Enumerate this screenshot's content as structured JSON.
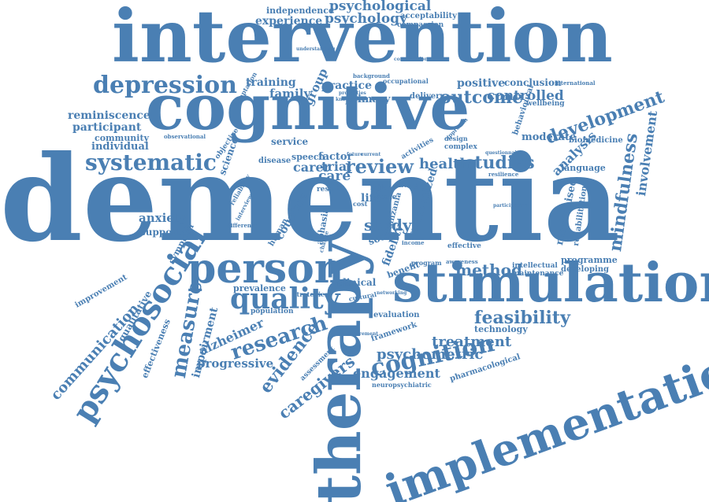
{
  "palette": {
    "word_color": "#4a7fb3",
    "background": "#ffffff"
  },
  "words": [
    {
      "text": "dementia"
    },
    {
      "text": "intervention"
    },
    {
      "text": "cognitive"
    },
    {
      "text": "stimulation"
    },
    {
      "text": "therapy"
    },
    {
      "text": "implementation"
    },
    {
      "text": "person"
    },
    {
      "text": "psychosocial"
    },
    {
      "text": "quality"
    },
    {
      "text": "depression"
    },
    {
      "text": "systematic"
    },
    {
      "text": "cognition"
    },
    {
      "text": "research"
    },
    {
      "text": "review"
    },
    {
      "text": "mindfulness"
    },
    {
      "text": "development"
    },
    {
      "text": "measure"
    },
    {
      "text": "evidence"
    },
    {
      "text": "studies"
    },
    {
      "text": "outcome"
    },
    {
      "text": "health"
    },
    {
      "text": "feasibility"
    },
    {
      "text": "caregivers"
    },
    {
      "text": "psychometric"
    },
    {
      "text": "treatment"
    },
    {
      "text": "communication"
    },
    {
      "text": "method"
    },
    {
      "text": "study"
    },
    {
      "text": "psychology"
    },
    {
      "text": "psychological"
    },
    {
      "text": "experience"
    },
    {
      "text": "independence"
    },
    {
      "text": "acceptability"
    },
    {
      "text": "compassion"
    },
    {
      "text": "training"
    },
    {
      "text": "family"
    },
    {
      "text": "group"
    },
    {
      "text": "practice"
    },
    {
      "text": "primary"
    },
    {
      "text": "positive"
    },
    {
      "text": "conclusion"
    },
    {
      "text": "controlled"
    },
    {
      "text": "reminiscence"
    },
    {
      "text": "participant"
    },
    {
      "text": "community"
    },
    {
      "text": "individual"
    },
    {
      "text": "involvement"
    },
    {
      "text": "analysis"
    },
    {
      "text": "moderate"
    },
    {
      "text": "biomedicine"
    },
    {
      "text": "wellbeing"
    },
    {
      "text": "language"
    },
    {
      "text": "randomised"
    },
    {
      "text": "rehabilitation"
    },
    {
      "text": "anxiety"
    },
    {
      "text": "support"
    },
    {
      "text": "symptom"
    },
    {
      "text": "improvement"
    },
    {
      "text": "qualitative"
    },
    {
      "text": "effectiveness"
    },
    {
      "text": "impairment"
    },
    {
      "text": "alzheimer"
    },
    {
      "text": "progressive"
    },
    {
      "text": "engagement"
    },
    {
      "text": "technology"
    },
    {
      "text": "pharmacological"
    },
    {
      "text": "programme"
    },
    {
      "text": "developing"
    },
    {
      "text": "intellectual"
    },
    {
      "text": "maintenance"
    },
    {
      "text": "clinical"
    },
    {
      "text": "benefit"
    },
    {
      "text": "fidelity"
    },
    {
      "text": "randomized"
    },
    {
      "text": "social"
    },
    {
      "text": "tanzania"
    },
    {
      "text": "care"
    },
    {
      "text": "carer"
    },
    {
      "text": "trial"
    },
    {
      "text": "factor"
    },
    {
      "text": "speech"
    },
    {
      "text": "service"
    },
    {
      "text": "science"
    },
    {
      "text": "disease"
    },
    {
      "text": "prevalence"
    },
    {
      "text": "population"
    },
    {
      "text": "strategies"
    },
    {
      "text": "framework"
    },
    {
      "text": "evaluation"
    },
    {
      "text": "assessment"
    },
    {
      "text": "neuropsychiatric"
    },
    {
      "text": "life"
    },
    {
      "text": "countrie"
    },
    {
      "text": "human"
    },
    {
      "text": "aphasia"
    },
    {
      "text": "delivery"
    },
    {
      "text": "occupational"
    },
    {
      "text": "background"
    },
    {
      "text": "conversation"
    },
    {
      "text": "understanding"
    },
    {
      "text": "adaptation"
    },
    {
      "text": "international"
    },
    {
      "text": "observational"
    },
    {
      "text": "result"
    },
    {
      "text": "behavioural"
    },
    {
      "text": "complex"
    },
    {
      "text": "design"
    },
    {
      "text": "approach"
    },
    {
      "text": "activities"
    },
    {
      "text": "questionnaire"
    },
    {
      "text": "resilience"
    },
    {
      "text": "objective"
    },
    {
      "text": "reliability"
    },
    {
      "text": "interview"
    },
    {
      "text": "difference"
    },
    {
      "text": "scale"
    },
    {
      "text": "income"
    },
    {
      "text": "program"
    },
    {
      "text": "effective"
    },
    {
      "text": "awareness"
    },
    {
      "text": "cultural"
    },
    {
      "text": "decline"
    },
    {
      "text": "measurement"
    },
    {
      "text": "networking"
    },
    {
      "text": "living"
    },
    {
      "text": "cost"
    },
    {
      "text": "based"
    },
    {
      "text": "mild"
    },
    {
      "text": "change"
    },
    {
      "text": "participation"
    },
    {
      "text": "properties"
    },
    {
      "text": "knowledge"
    },
    {
      "text": "current"
    },
    {
      "text": "future"
    }
  ]
}
